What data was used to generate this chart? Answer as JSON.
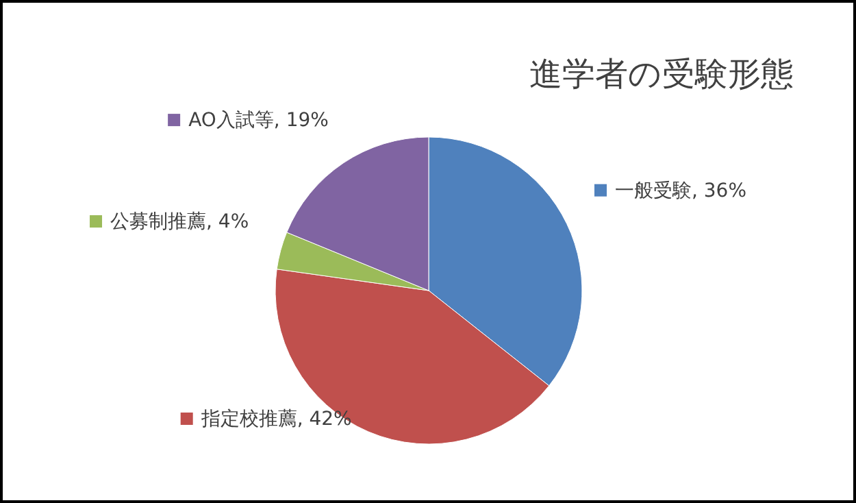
{
  "chart_data": {
    "type": "pie",
    "title": "進学者の受験形態",
    "categories": [
      "一般受験",
      "指定校推薦",
      "公募制推薦",
      "AO入試等"
    ],
    "values": [
      36,
      42,
      4,
      19
    ],
    "value_labels": [
      "36%",
      "42%",
      "4%",
      "19%"
    ],
    "colors": [
      "#4f81bd",
      "#c0504d",
      "#9bbb59",
      "#8064a2"
    ],
    "legend": "center"
  }
}
